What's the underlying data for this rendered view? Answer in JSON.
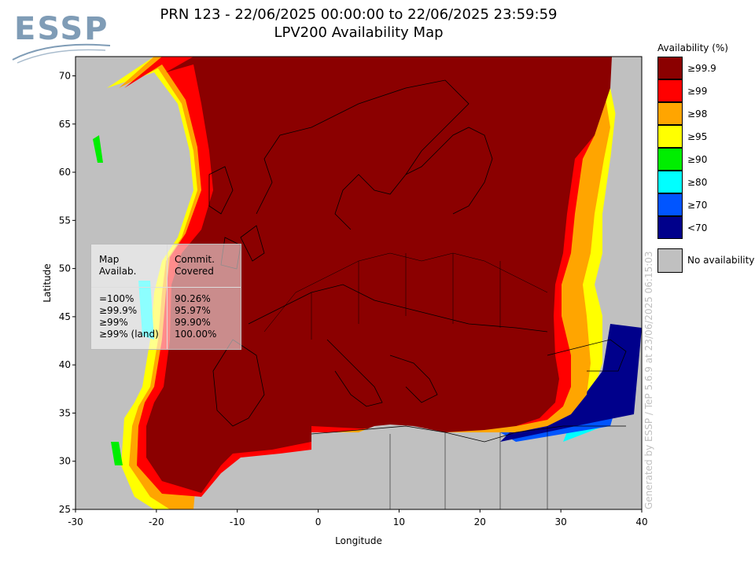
{
  "title": {
    "line1": "PRN 123 - 22/06/2025 00:00:00 to 22/06/2025 23:59:59",
    "line2": "LPV200 Availability Map"
  },
  "logo": {
    "text": "ESSP"
  },
  "axes": {
    "xlabel": "Longitude",
    "ylabel": "Latitude",
    "xlim": [
      -30,
      40
    ],
    "ylim": [
      25,
      72
    ],
    "xticks": [
      "-30",
      "-20",
      "-10",
      "0",
      "10",
      "20",
      "30",
      "40"
    ],
    "yticks": [
      "25",
      "30",
      "35",
      "40",
      "45",
      "50",
      "55",
      "60",
      "65",
      "70"
    ]
  },
  "legend": {
    "title": "Availability (%)",
    "items": [
      {
        "label": "≥99.9",
        "color": "#8b0000"
      },
      {
        "label": "≥99",
        "color": "#ff0000"
      },
      {
        "label": "≥98",
        "color": "#ffa500"
      },
      {
        "label": "≥95",
        "color": "#ffff00"
      },
      {
        "label": "≥90",
        "color": "#00ee00"
      },
      {
        "label": "≥80",
        "color": "#00ffff"
      },
      {
        "label": "≥70",
        "color": "#0055ff"
      },
      {
        "label": "<70",
        "color": "#00008b"
      }
    ],
    "no_availability": {
      "label": "No availability",
      "color": "#c0c0c0"
    }
  },
  "stats": {
    "header_left": [
      "Map",
      "Availab."
    ],
    "header_right": [
      "Commit.",
      "Covered"
    ],
    "rows": [
      {
        "level": "=100%",
        "covered": "90.26%"
      },
      {
        "level": "≥99.9%",
        "covered": "95.97%"
      },
      {
        "level": "≥99%",
        "covered": "99.90%"
      },
      {
        "level": "≥99% (land)",
        "covered": "100.00%"
      }
    ]
  },
  "generated": "Generated by ESSP / TeP 5.6.9 at 23/06/2025 06:15:03"
}
